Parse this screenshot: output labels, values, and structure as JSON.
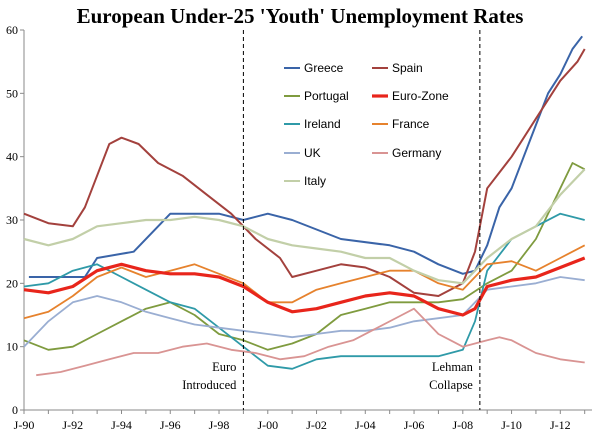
{
  "chart_data": {
    "type": "line",
    "title": "European Under-25 'Youth' Unemployment Rates",
    "xlabel": "",
    "ylabel": "",
    "ylim": [
      0,
      60
    ],
    "y_ticks": [
      "0",
      "10",
      "20",
      "30",
      "40",
      "50",
      "60"
    ],
    "x_ticks": [
      "J-90",
      "J-92",
      "J-94",
      "J-96",
      "J-98",
      "J-00",
      "J-02",
      "J-04",
      "J-06",
      "J-08",
      "J-10",
      "J-12"
    ],
    "grid": false,
    "legend_placement": "top-center",
    "annotations": [
      {
        "text": [
          "Euro",
          "Introduced"
        ],
        "x": 1999.0
      },
      {
        "text": [
          "Lehman",
          "Collapse"
        ],
        "x": 2008.7
      }
    ],
    "series": [
      {
        "name": "Greece",
        "color": "#3a64a8",
        "width": 2.0,
        "points": [
          [
            1990.2,
            21
          ],
          [
            1992.5,
            21
          ],
          [
            1993.0,
            24
          ],
          [
            1994.5,
            25
          ],
          [
            1996.0,
            31
          ],
          [
            1998.0,
            31
          ],
          [
            1999.0,
            30
          ],
          [
            2000.0,
            31
          ],
          [
            2001.0,
            30
          ],
          [
            2003.0,
            27
          ],
          [
            2005.0,
            26
          ],
          [
            2006.0,
            25
          ],
          [
            2007.0,
            23
          ],
          [
            2008.0,
            21.5
          ],
          [
            2008.5,
            22
          ],
          [
            2009.0,
            26
          ],
          [
            2009.5,
            32
          ],
          [
            2010.0,
            35
          ],
          [
            2010.5,
            40
          ],
          [
            2011.0,
            45
          ],
          [
            2011.5,
            50
          ],
          [
            2012.0,
            53
          ],
          [
            2012.5,
            57
          ],
          [
            2012.9,
            59
          ]
        ]
      },
      {
        "name": "Spain",
        "color": "#a3413d",
        "width": 2.0,
        "points": [
          [
            1990.0,
            31
          ],
          [
            1991.0,
            29.5
          ],
          [
            1992.0,
            29
          ],
          [
            1992.5,
            32
          ],
          [
            1993.0,
            37
          ],
          [
            1993.5,
            42
          ],
          [
            1994.0,
            43
          ],
          [
            1994.7,
            42
          ],
          [
            1995.5,
            39
          ],
          [
            1996.5,
            37
          ],
          [
            1997.5,
            34
          ],
          [
            1998.5,
            31
          ],
          [
            1999.5,
            27
          ],
          [
            2000.5,
            24
          ],
          [
            2001.0,
            21
          ],
          [
            2002.0,
            22
          ],
          [
            2003.0,
            23
          ],
          [
            2004.0,
            22.5
          ],
          [
            2005.0,
            21
          ],
          [
            2006.0,
            18.5
          ],
          [
            2007.0,
            18
          ],
          [
            2008.0,
            20
          ],
          [
            2008.5,
            25
          ],
          [
            2009.0,
            35
          ],
          [
            2010.0,
            40
          ],
          [
            2011.0,
            46
          ],
          [
            2012.0,
            52
          ],
          [
            2012.7,
            55
          ],
          [
            2013.0,
            57
          ]
        ]
      },
      {
        "name": "Portugal",
        "color": "#7f9b3f",
        "width": 1.8,
        "points": [
          [
            1990.0,
            11
          ],
          [
            1991.0,
            9.5
          ],
          [
            1992.0,
            10
          ],
          [
            1993.0,
            12
          ],
          [
            1994.0,
            14
          ],
          [
            1995.0,
            16
          ],
          [
            1996.0,
            17
          ],
          [
            1997.0,
            15
          ],
          [
            1998.0,
            12
          ],
          [
            1999.0,
            11
          ],
          [
            2000.0,
            9.5
          ],
          [
            2001.0,
            10.5
          ],
          [
            2002.0,
            12
          ],
          [
            2003.0,
            15
          ],
          [
            2004.0,
            16
          ],
          [
            2005.0,
            17
          ],
          [
            2006.0,
            17
          ],
          [
            2007.0,
            17
          ],
          [
            2008.0,
            17.5
          ],
          [
            2009.0,
            20
          ],
          [
            2010.0,
            22
          ],
          [
            2011.0,
            27
          ],
          [
            2012.0,
            35
          ],
          [
            2012.5,
            39
          ],
          [
            2013.0,
            38
          ]
        ]
      },
      {
        "name": "Euro-Zone",
        "color": "#e8251b",
        "width": 3.2,
        "points": [
          [
            1990.0,
            19
          ],
          [
            1991.0,
            18.5
          ],
          [
            1992.0,
            19.5
          ],
          [
            1993.0,
            22
          ],
          [
            1994.0,
            23
          ],
          [
            1995.0,
            22
          ],
          [
            1996.0,
            21.5
          ],
          [
            1997.0,
            21.5
          ],
          [
            1998.0,
            21
          ],
          [
            1999.0,
            19.5
          ],
          [
            2000.0,
            17
          ],
          [
            2001.0,
            15.5
          ],
          [
            2002.0,
            16
          ],
          [
            2003.0,
            17
          ],
          [
            2004.0,
            18
          ],
          [
            2005.0,
            18.5
          ],
          [
            2006.0,
            18
          ],
          [
            2007.0,
            16
          ],
          [
            2008.0,
            15
          ],
          [
            2008.5,
            16
          ],
          [
            2009.0,
            19.5
          ],
          [
            2010.0,
            20.5
          ],
          [
            2011.0,
            21
          ],
          [
            2012.0,
            22.5
          ],
          [
            2013.0,
            24
          ]
        ]
      },
      {
        "name": "Ireland",
        "color": "#2f9aa8",
        "width": 1.8,
        "points": [
          [
            1990.0,
            19.5
          ],
          [
            1991.0,
            20
          ],
          [
            1992.0,
            22
          ],
          [
            1993.0,
            23
          ],
          [
            1994.0,
            21
          ],
          [
            1995.0,
            19
          ],
          [
            1996.0,
            17
          ],
          [
            1997.0,
            16
          ],
          [
            1998.0,
            13
          ],
          [
            1999.0,
            10
          ],
          [
            2000.0,
            7
          ],
          [
            2001.0,
            6.5
          ],
          [
            2002.0,
            8
          ],
          [
            2003.0,
            8.5
          ],
          [
            2004.0,
            8.5
          ],
          [
            2005.0,
            8.5
          ],
          [
            2006.0,
            8.5
          ],
          [
            2007.0,
            8.5
          ],
          [
            2008.0,
            9.5
          ],
          [
            2008.5,
            14
          ],
          [
            2009.0,
            22
          ],
          [
            2010.0,
            27
          ],
          [
            2011.0,
            29
          ],
          [
            2012.0,
            31
          ],
          [
            2013.0,
            30
          ]
        ]
      },
      {
        "name": "France",
        "color": "#e6822d",
        "width": 1.8,
        "points": [
          [
            1990.0,
            14.5
          ],
          [
            1991.0,
            15.5
          ],
          [
            1992.0,
            18
          ],
          [
            1993.0,
            21
          ],
          [
            1994.0,
            22.5
          ],
          [
            1995.0,
            21
          ],
          [
            1996.0,
            22
          ],
          [
            1997.0,
            23
          ],
          [
            1998.0,
            21.5
          ],
          [
            1999.0,
            20
          ],
          [
            2000.0,
            17
          ],
          [
            2001.0,
            17
          ],
          [
            2002.0,
            19
          ],
          [
            2003.0,
            20
          ],
          [
            2004.0,
            21
          ],
          [
            2005.0,
            22
          ],
          [
            2006.0,
            22
          ],
          [
            2007.0,
            20
          ],
          [
            2008.0,
            19
          ],
          [
            2009.0,
            23
          ],
          [
            2010.0,
            23.5
          ],
          [
            2011.0,
            22
          ],
          [
            2012.0,
            24
          ],
          [
            2013.0,
            26
          ]
        ]
      },
      {
        "name": "UK",
        "color": "#9aaed2",
        "width": 1.8,
        "points": [
          [
            1990.0,
            10
          ],
          [
            1991.0,
            14
          ],
          [
            1992.0,
            17
          ],
          [
            1993.0,
            18
          ],
          [
            1994.0,
            17
          ],
          [
            1995.0,
            15.5
          ],
          [
            1996.0,
            14.5
          ],
          [
            1997.0,
            13.5
          ],
          [
            1998.0,
            13
          ],
          [
            1999.0,
            12.5
          ],
          [
            2000.0,
            12
          ],
          [
            2001.0,
            11.5
          ],
          [
            2002.0,
            12
          ],
          [
            2003.0,
            12.5
          ],
          [
            2004.0,
            12.5
          ],
          [
            2005.0,
            13
          ],
          [
            2006.0,
            14
          ],
          [
            2007.0,
            14.5
          ],
          [
            2008.0,
            15
          ],
          [
            2009.0,
            19
          ],
          [
            2010.0,
            19.5
          ],
          [
            2011.0,
            20
          ],
          [
            2012.0,
            21
          ],
          [
            2013.0,
            20.5
          ]
        ]
      },
      {
        "name": "Germany",
        "color": "#d99493",
        "width": 1.8,
        "points": [
          [
            1990.5,
            5.5
          ],
          [
            1991.5,
            6
          ],
          [
            1992.5,
            7
          ],
          [
            1993.5,
            8
          ],
          [
            1994.5,
            9
          ],
          [
            1995.5,
            9
          ],
          [
            1996.5,
            10
          ],
          [
            1997.5,
            10.5
          ],
          [
            1998.5,
            9.5
          ],
          [
            1999.5,
            9
          ],
          [
            2000.5,
            8
          ],
          [
            2001.5,
            8.5
          ],
          [
            2002.5,
            10
          ],
          [
            2003.5,
            11
          ],
          [
            2004.5,
            13
          ],
          [
            2005.5,
            15
          ],
          [
            2006.0,
            16
          ],
          [
            2006.5,
            14
          ],
          [
            2007.0,
            12
          ],
          [
            2007.5,
            11
          ],
          [
            2008.0,
            10
          ],
          [
            2008.5,
            10.5
          ],
          [
            2009.0,
            11
          ],
          [
            2009.5,
            11.5
          ],
          [
            2010.0,
            11
          ],
          [
            2010.5,
            10
          ],
          [
            2011.0,
            9
          ],
          [
            2012.0,
            8
          ],
          [
            2013.0,
            7.5
          ]
        ]
      },
      {
        "name": "Italy",
        "color": "#c2cfa8",
        "width": 2.2,
        "points": [
          [
            1990.0,
            27
          ],
          [
            1991.0,
            26
          ],
          [
            1992.0,
            27
          ],
          [
            1993.0,
            29
          ],
          [
            1994.0,
            29.5
          ],
          [
            1995.0,
            30
          ],
          [
            1996.0,
            30
          ],
          [
            1997.0,
            30.5
          ],
          [
            1998.0,
            30
          ],
          [
            1999.0,
            29
          ],
          [
            2000.0,
            27
          ],
          [
            2001.0,
            26
          ],
          [
            2002.0,
            25.5
          ],
          [
            2003.0,
            25
          ],
          [
            2004.0,
            24
          ],
          [
            2005.0,
            24
          ],
          [
            2006.0,
            22
          ],
          [
            2007.0,
            20.5
          ],
          [
            2008.0,
            20
          ],
          [
            2009.0,
            24
          ],
          [
            2010.0,
            27
          ],
          [
            2011.0,
            29
          ],
          [
            2012.0,
            34
          ],
          [
            2013.0,
            38
          ]
        ]
      }
    ]
  }
}
